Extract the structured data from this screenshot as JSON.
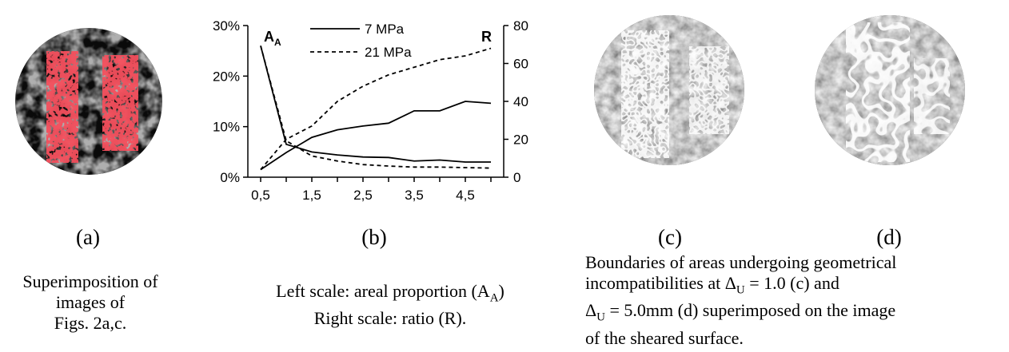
{
  "panels": {
    "a": {
      "label": "(a)",
      "caption": [
        "Superimposition of",
        "images of",
        "Figs. 2a,c."
      ]
    },
    "b": {
      "label": "(b)",
      "caption": [
        "Left scale: areal proportion (A",
        "A",
        ")",
        "Right scale: ratio (R)."
      ]
    },
    "c": {
      "label": "(c)"
    },
    "d": {
      "label": "(d)"
    },
    "cd_caption": {
      "line1": "Boundaries of areas undergoing geometrical",
      "line2_pre": "incompatibilities at Δ",
      "line2_sub": "U",
      "line2_post": " = 1.0 (c) and",
      "line3_pre": "Δ",
      "line3_sub": "U",
      "line3_post": " = 5.0mm (d) superimposed on the image",
      "line4": "of the sheared surface."
    }
  },
  "colors": {
    "highlight_red": "#e8141c",
    "white_outline": "#ffffff",
    "dark": "#0a0a0a",
    "gray": "#6e6e6e"
  },
  "chart_data": {
    "type": "line",
    "x": [
      0.5,
      1,
      1.5,
      2,
      2.5,
      3,
      3.5,
      4,
      4.5,
      5
    ],
    "xticks": [
      "0,5",
      "1,5",
      "2,5",
      "3,5",
      "4,5"
    ],
    "left_axis": {
      "label_main": "A",
      "label_sub": "A",
      "ticks": [
        "0%",
        "10%",
        "20%",
        "30%"
      ],
      "ylim": [
        0,
        30
      ]
    },
    "right_axis": {
      "label": "R",
      "ticks": [
        "0",
        "20",
        "40",
        "60",
        "80"
      ],
      "ylim": [
        0,
        80
      ]
    },
    "legend": [
      "7 MPa",
      "21 MPa"
    ],
    "series": [
      {
        "name": "7 MPa",
        "style": "solid",
        "axis": "left",
        "values": [
          26,
          6.5,
          5.0,
          4.4,
          4.0,
          3.9,
          3.2,
          3.4,
          3.0,
          3.0
        ]
      },
      {
        "name": "7 MPa",
        "style": "solid",
        "axis": "right",
        "values": [
          4,
          13,
          21,
          25,
          27,
          28.5,
          35,
          35,
          40,
          39
        ]
      },
      {
        "name": "21 MPa",
        "style": "dashed",
        "axis": "left",
        "values": [
          26,
          7.2,
          4.2,
          3.2,
          2.5,
          2.2,
          2.0,
          2.0,
          1.9,
          1.8
        ]
      },
      {
        "name": "21 MPa",
        "style": "dashed",
        "axis": "right",
        "values": [
          4,
          20,
          27,
          40,
          48,
          54,
          58,
          62,
          64,
          68
        ]
      }
    ]
  }
}
